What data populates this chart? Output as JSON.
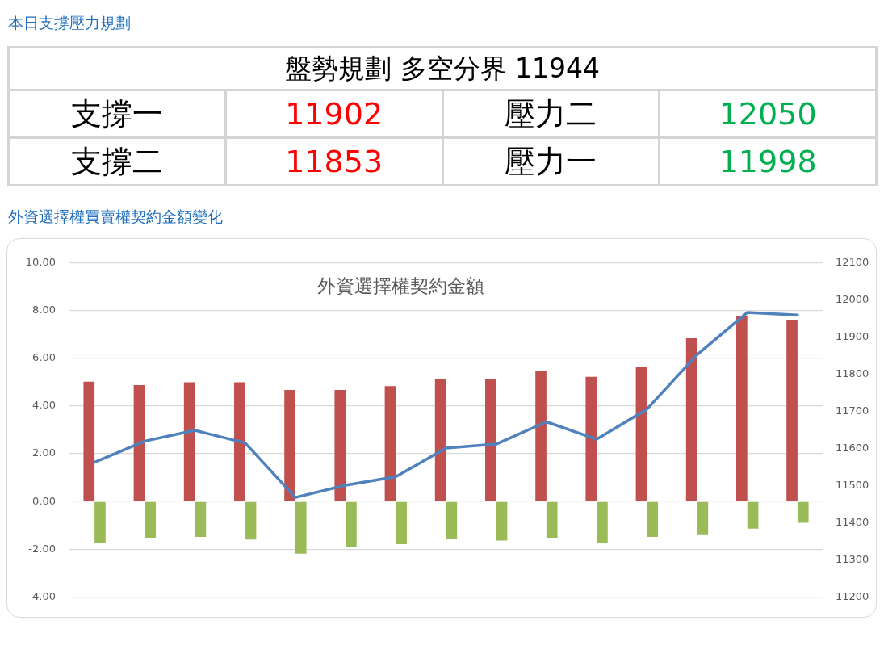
{
  "chart_data": [
    {
      "type": "other",
      "title": "本日支撐壓力規劃",
      "subtitle": "盤勢規劃 多空分界 11944",
      "categories": [
        "支撐一",
        "壓力二",
        "支撐二",
        "壓力一"
      ],
      "values": [
        11902,
        12050,
        11853,
        11998
      ],
      "colors": [
        "#ff0000",
        "#00b050",
        "#ff0000",
        "#00b050"
      ],
      "data_labels": true
    },
    {
      "type": "bar",
      "title": "外資選擇權買賣權契約金額變化",
      "subtitle": "外資選擇權契約金額",
      "categories": [
        null,
        null,
        null,
        null,
        null,
        null,
        null,
        null,
        null,
        null,
        null,
        null,
        null,
        null,
        null
      ],
      "series": [
        {
          "color": "#c0504d",
          "values": [
            5.03,
            4.88,
            5.0,
            5.0,
            4.68,
            4.68,
            4.84,
            5.12,
            5.12,
            5.47,
            5.23,
            5.63,
            6.85,
            7.8,
            7.63
          ]
        },
        {
          "color": "#9bbb59",
          "values": [
            -1.73,
            -1.53,
            -1.49,
            -1.6,
            -2.19,
            -1.93,
            -1.79,
            -1.59,
            -1.64,
            -1.53,
            -1.73,
            -1.49,
            -1.41,
            -1.14,
            -0.89
          ]
        },
        {
          "type": "line",
          "axis": "y2",
          "color": "#4f81bd",
          "values": [
            11563,
            11620,
            11649,
            11615,
            11468,
            11501,
            11524,
            11601,
            11612,
            11672,
            11625,
            11706,
            11853,
            11967,
            11960
          ]
        }
      ],
      "ylim": [
        -4,
        10
      ],
      "yticks": [
        {
          "value": -4,
          "label": "-4.00"
        },
        {
          "value": -2,
          "label": "-2.00"
        },
        {
          "value": 0,
          "label": "0.00"
        },
        {
          "value": 2,
          "label": "2.00"
        },
        {
          "value": 4,
          "label": "4.00"
        },
        {
          "value": 6,
          "label": "6.00"
        },
        {
          "value": 8,
          "label": "8.00"
        },
        {
          "value": 10,
          "label": "10.00"
        }
      ],
      "y2lim": [
        11200,
        12100
      ],
      "y2ticks": [
        11200,
        11300,
        11400,
        11500,
        11600,
        11700,
        11800,
        11900,
        12000,
        12100
      ],
      "grid": "y",
      "marker": "none"
    }
  ]
}
